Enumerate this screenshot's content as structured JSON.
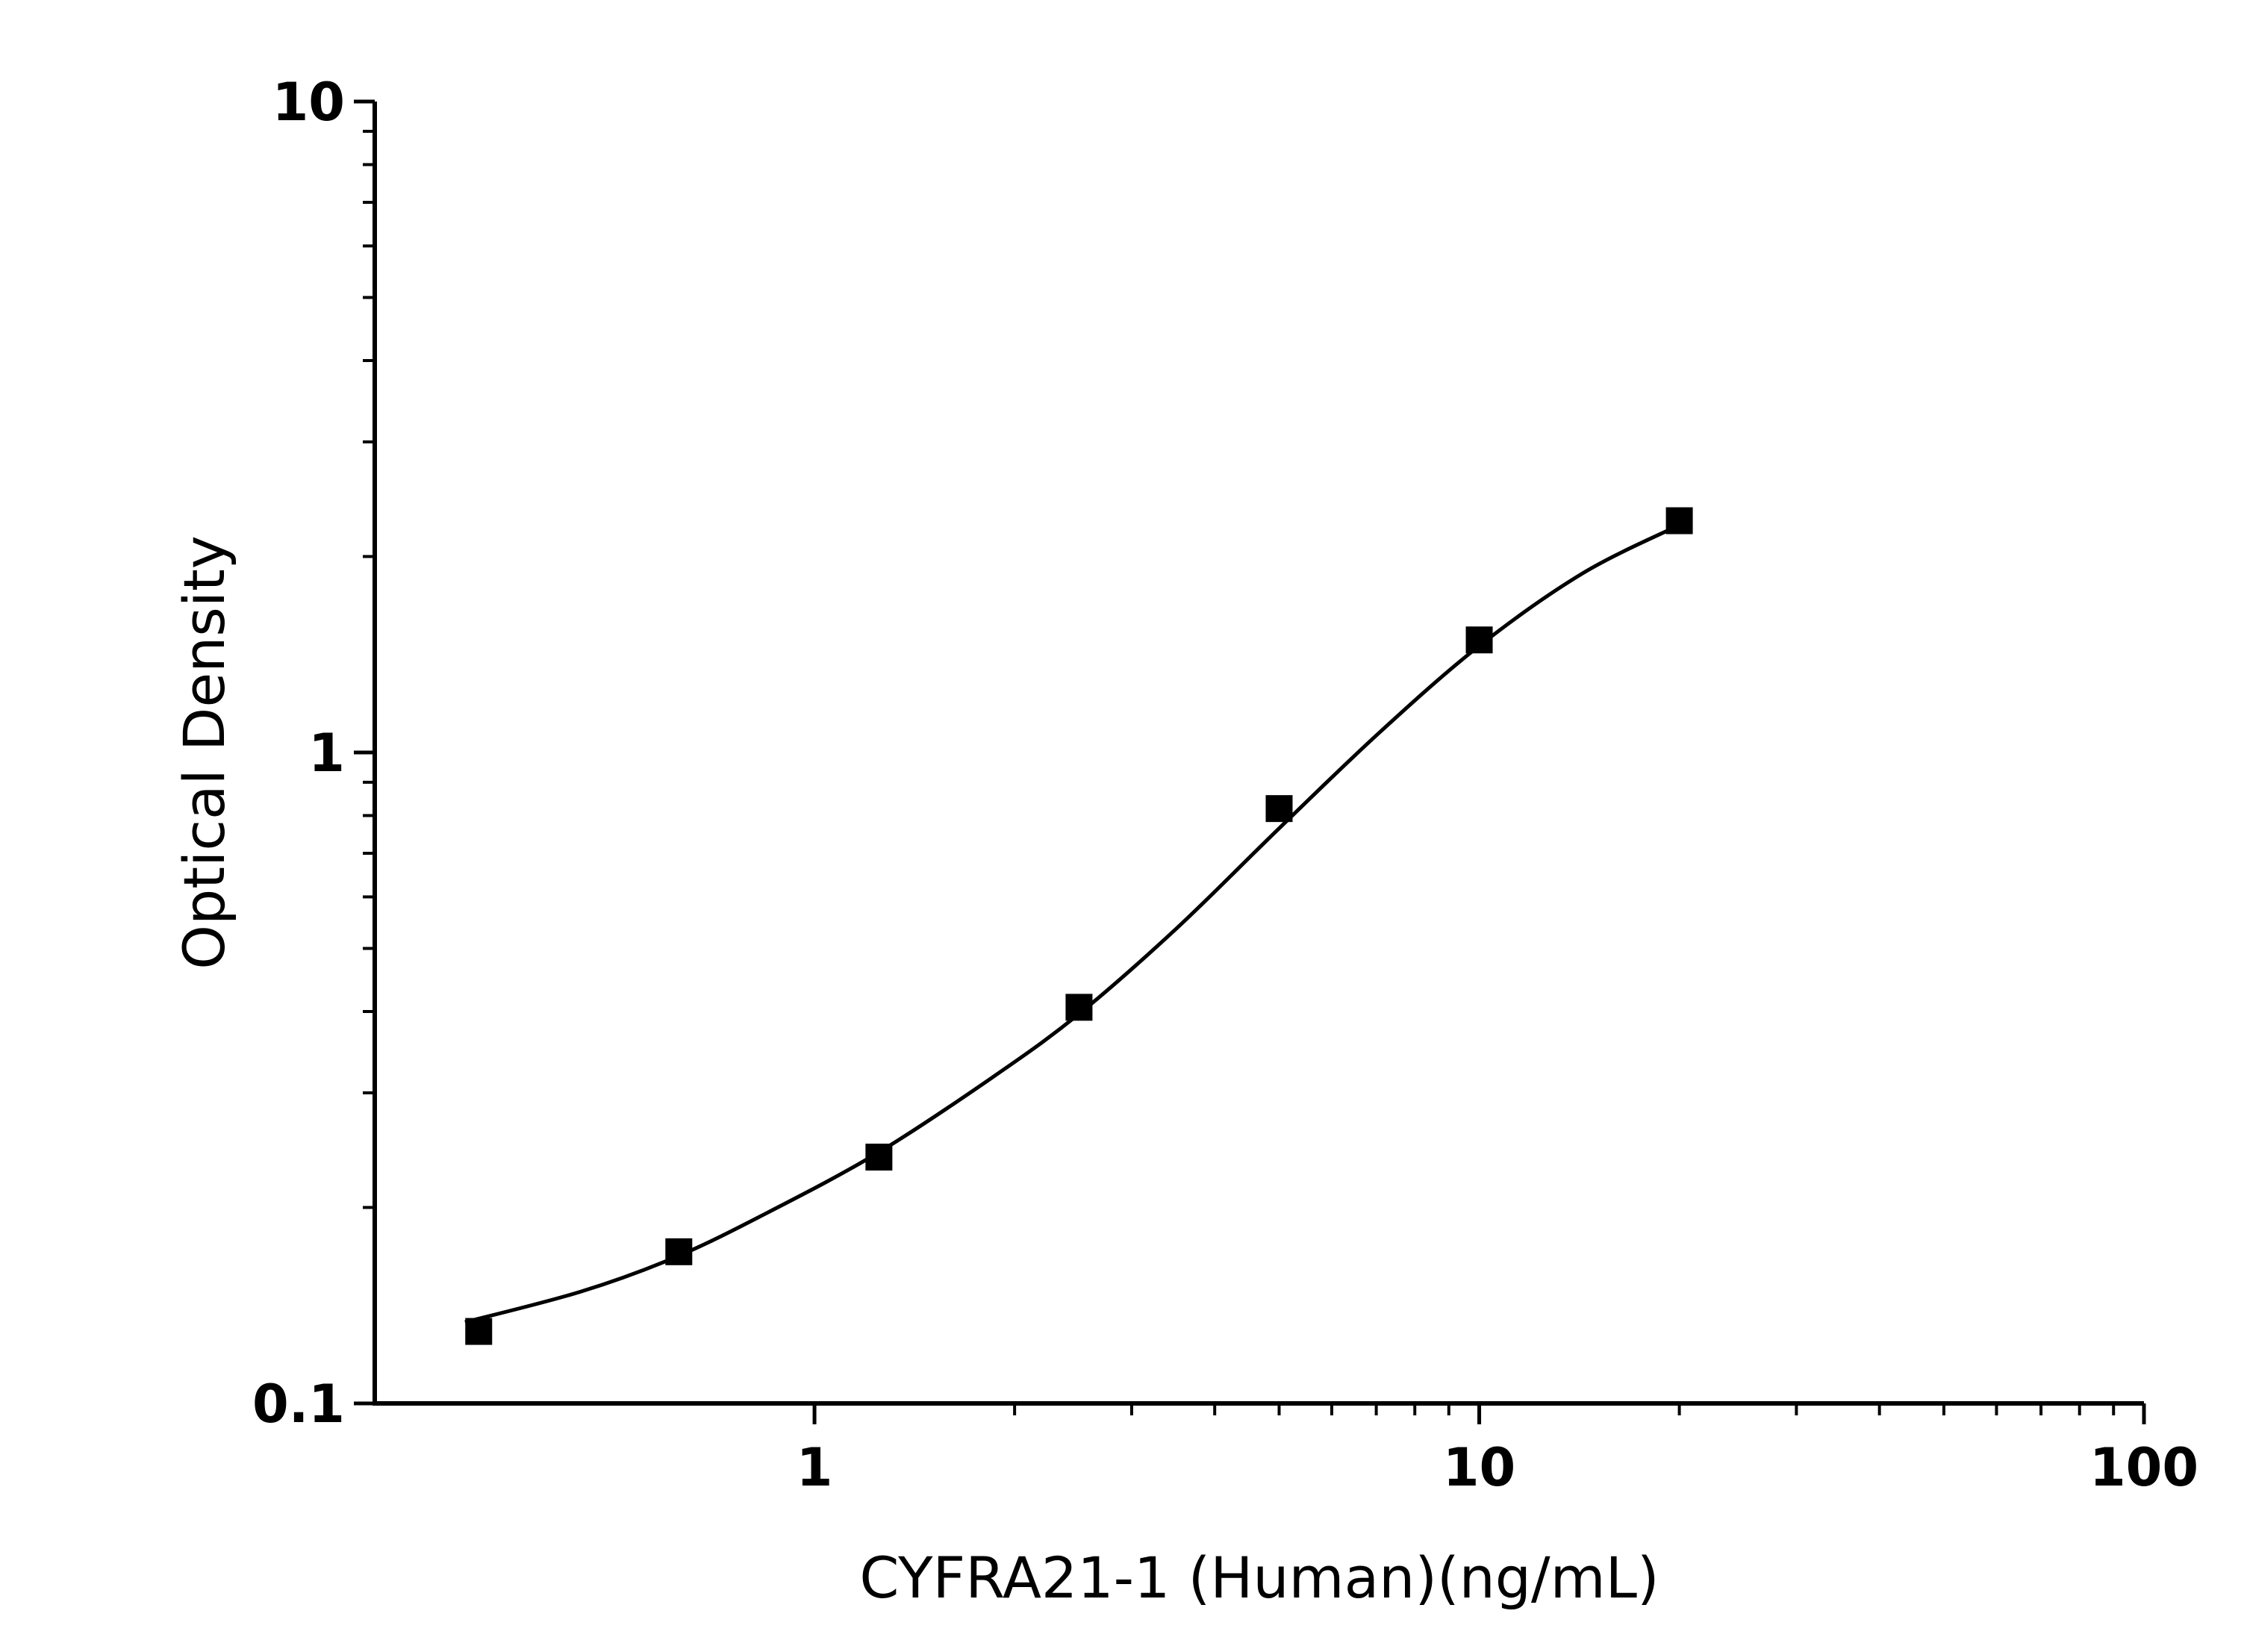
{
  "chart_data": {
    "type": "scatter",
    "x_label": "CYFRA21-1 (Human)(ng/mL)",
    "y_label": "Optical Density",
    "xlog": true,
    "ylog": true,
    "xlim": [
      0.218,
      100
    ],
    "ylim": [
      0.1,
      10
    ],
    "xticks": [
      1,
      10,
      100
    ],
    "yticks": [
      0.1,
      1,
      10
    ],
    "xminorticks": [
      2,
      3,
      4,
      5,
      6,
      7,
      8,
      9,
      20,
      30,
      40,
      50,
      60,
      70,
      80,
      90
    ],
    "yminorticks": [
      0.2,
      0.3,
      0.4,
      0.5,
      0.6,
      0.7,
      0.8,
      0.9,
      2,
      3,
      4,
      5,
      6,
      7,
      8,
      9
    ],
    "series": [
      {
        "type": "scatter",
        "marker": "square",
        "color": "#000000",
        "x": [
          0.3125,
          0.625,
          1.25,
          2.5,
          5,
          10,
          20
        ],
        "values": [
          0.129,
          0.171,
          0.239,
          0.406,
          0.82,
          1.489,
          2.27
        ]
      },
      {
        "type": "line",
        "color": "#000000",
        "x": [
          0.298,
          0.445,
          0.62,
          0.855,
          1.24,
          1.82,
          2.48,
          3.5,
          4.97,
          7.07,
          10,
          14.3,
          19.9
        ],
        "values": [
          0.1333,
          0.1485,
          0.168,
          0.197,
          0.242,
          0.313,
          0.394,
          0.536,
          0.76,
          1.072,
          1.458,
          1.884,
          2.23
        ]
      }
    ]
  }
}
